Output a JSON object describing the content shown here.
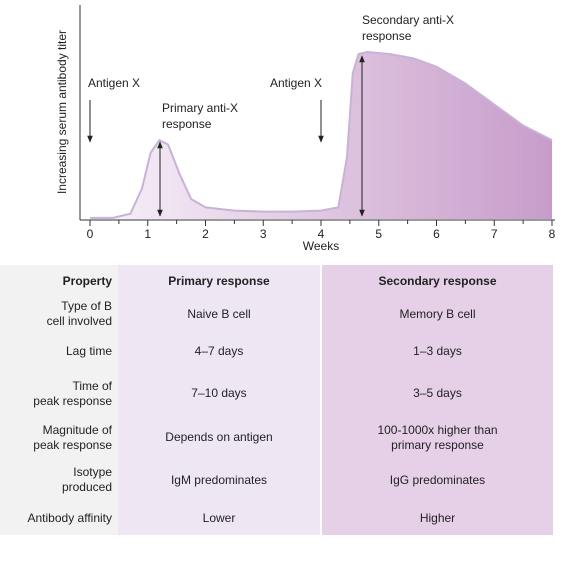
{
  "chart_data": {
    "type": "area",
    "ylabel": "Increasing serum antibody titer",
    "xlabel": "Weeks",
    "x": [
      0,
      0.4,
      0.7,
      0.9,
      1.05,
      1.2,
      1.35,
      1.55,
      1.75,
      2.0,
      2.5,
      3.0,
      3.5,
      4.0,
      4.3,
      4.45,
      4.55,
      4.65,
      4.8,
      5.2,
      5.6,
      6.0,
      6.5,
      7.0,
      7.5,
      8.0
    ],
    "values": [
      1,
      1,
      3,
      15,
      32,
      38,
      36,
      22,
      10,
      6,
      4.5,
      4,
      4,
      4.5,
      6,
      30,
      70,
      79,
      80,
      79,
      77,
      73,
      65,
      55,
      45,
      38
    ],
    "color": "#c79cc9",
    "xlim": [
      0,
      8
    ],
    "xticks": [
      0,
      1,
      2,
      3,
      4,
      5,
      6,
      7,
      8
    ],
    "ylim": [
      0,
      100
    ],
    "annotations": [
      "Antigen X",
      "Antigen X",
      "Primary anti-X\nresponse",
      "Secondary anti-X\nresponse"
    ]
  },
  "table": {
    "header": [
      "Property",
      "Primary response",
      "Secondary response"
    ],
    "rows": [
      [
        "Type of B\ncell involved",
        "Naive B cell",
        "Memory B cell"
      ],
      [
        "Lag time",
        "4–7 days",
        "1–3 days"
      ],
      [
        "Time of\npeak response",
        "7–10 days",
        "3–5 days"
      ],
      [
        "Magnitude of\npeak response",
        "Depends on antigen",
        "100-1000x higher than\nprimary response"
      ],
      [
        "Isotype\nproduced",
        "IgM predominates",
        "IgG predominates"
      ],
      [
        "Antibody affinity",
        "Lower",
        "Higher"
      ]
    ]
  }
}
